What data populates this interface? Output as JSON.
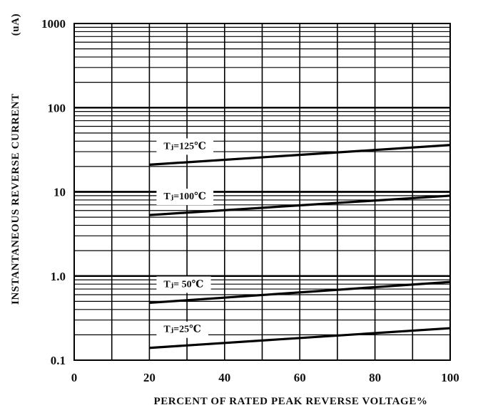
{
  "chart_data": {
    "type": "line",
    "title": "",
    "xlabel": "PERCENT OF RATED PEAK REVERSE VOLTAGE%",
    "ylabel": "INSTANTANEOUS REVERSE CURRENT",
    "ylabel_unit": "(uA)",
    "xlim": [
      0,
      100
    ],
    "ylim": [
      0.1,
      1000
    ],
    "yscale": "log",
    "grid": true,
    "x_ticks": [
      0,
      20,
      40,
      60,
      80,
      100
    ],
    "x_tick_labels": [
      "0",
      "20",
      "40",
      "60",
      "80",
      "100"
    ],
    "y_ticks": [
      1000,
      100,
      10,
      1,
      0.1
    ],
    "y_tick_labels": [
      "1000",
      "100",
      "10",
      "1.0",
      "0.1"
    ],
    "series": [
      {
        "name": "Tⱼ=125℃",
        "x": [
          20,
          100
        ],
        "y": [
          21,
          36
        ]
      },
      {
        "name": "Tⱼ=100℃",
        "x": [
          20,
          100
        ],
        "y": [
          5.3,
          9.0
        ]
      },
      {
        "name": "Tⱼ= 50℃",
        "x": [
          20,
          100
        ],
        "y": [
          0.48,
          0.85
        ]
      },
      {
        "name": "Tⱼ=25℃",
        "x": [
          20,
          100
        ],
        "y": [
          0.14,
          0.24
        ]
      }
    ]
  }
}
